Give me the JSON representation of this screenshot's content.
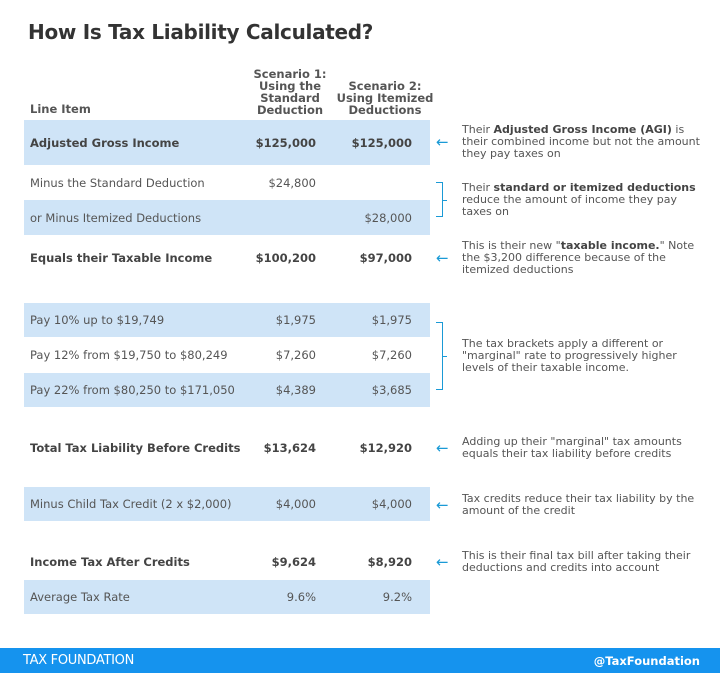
{
  "title": "How Is Tax Liability Calculated?",
  "columns": {
    "line_item": "Line Item",
    "scenario1": [
      "Scenario 1:",
      "Using the",
      "Standard",
      "Deduction"
    ],
    "scenario2": [
      "Scenario 2:",
      "Using Itemized",
      "Deductions"
    ]
  },
  "rows": [
    {
      "label": "Adjusted Gross Income",
      "s1": "$125,000",
      "s2": "$125,000"
    },
    {
      "label": "Minus the Standard Deduction",
      "s1": "$24,800",
      "s2": ""
    },
    {
      "label": "or Minus Itemized Deductions",
      "s1": "",
      "s2": "$28,000"
    },
    {
      "label": "Equals their Taxable Income",
      "s1": "$100,200",
      "s2": "$97,000"
    },
    {
      "label": "Pay 10% up to $19,749",
      "s1": "$1,975",
      "s2": "$1,975"
    },
    {
      "label": "Pay 12% from $19,750 to $80,249",
      "s1": "$7,260",
      "s2": "$7,260"
    },
    {
      "label": "Pay 22% from $80,250 to $171,050",
      "s1": "$4,389",
      "s2": "$3,685"
    },
    {
      "label": "Total Tax Liability Before Credits",
      "s1": "$13,624",
      "s2": "$12,920"
    },
    {
      "label": "Minus Child Tax Credit (2 x $2,000)",
      "s1": "$4,000",
      "s2": "$4,000"
    },
    {
      "label": "Income Tax After Credits",
      "s1": "$9,624",
      "s2": "$8,920"
    },
    {
      "label": "Average Tax Rate",
      "s1": "9.6%",
      "s2": "9.2%"
    }
  ],
  "notes": {
    "agi": {
      "pre": "Their ",
      "bold": "Adjusted Gross Income (AGI)",
      "post": " is their combined income but not the amount they pay taxes on"
    },
    "deductions": {
      "pre": "Their ",
      "bold": "standard or itemized deductions",
      "post": " reduce the amount of income they pay taxes on"
    },
    "taxable": {
      "pre": "This is their new \"",
      "bold": "taxable income.",
      "post": "\" Note the $3,200 difference because of the itemized deductions"
    },
    "brackets": "The tax brackets apply a different or \"marginal\" rate to progressively higher levels of their taxable income.",
    "total": "Adding up their \"marginal\" tax amounts equals their tax liability before credits",
    "credits": "Tax credits reduce their tax liability by the amount of the credit",
    "final": "This is their final tax bill after taking their deductions and credits into account"
  },
  "footer": {
    "brand": "TAX FOUNDATION",
    "handle": "@TaxFoundation"
  },
  "colors": {
    "row_highlight": "#cfe4f7",
    "accent": "#1a9ad6",
    "footer": "#1593ee"
  }
}
